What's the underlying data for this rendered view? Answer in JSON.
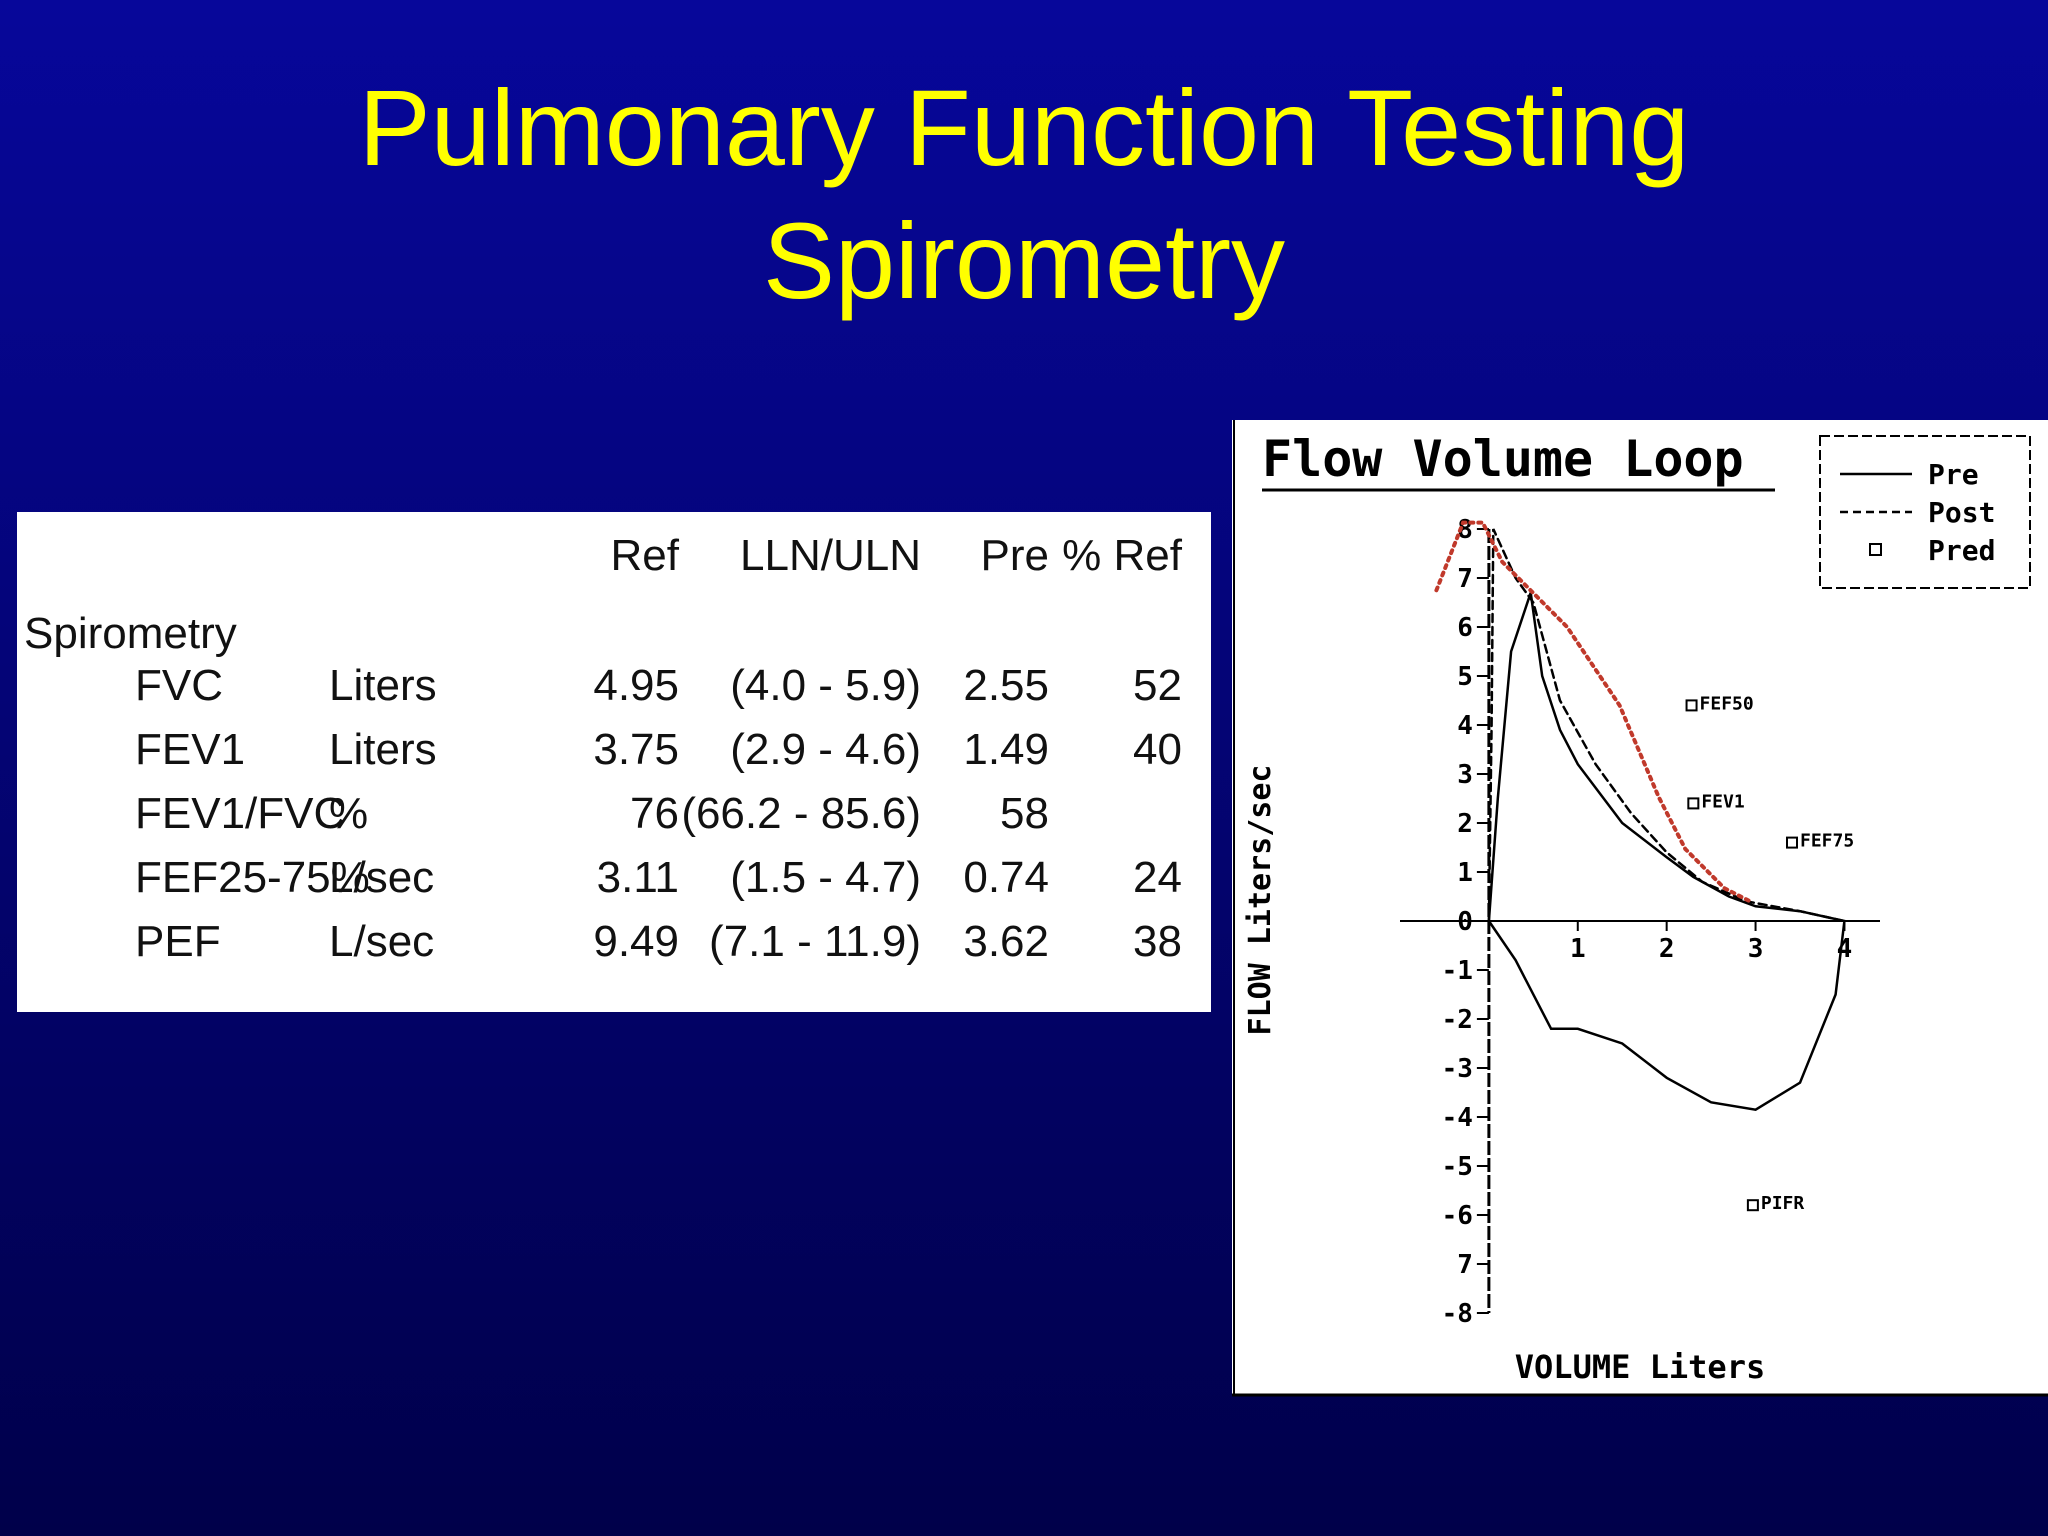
{
  "slide": {
    "title": [
      "Pulmonary Function Testing",
      "Spirometry"
    ]
  },
  "table": {
    "columns": [
      "Ref",
      "LLN/ULN",
      "Pre",
      "% Ref"
    ],
    "section": "Spirometry",
    "rows": [
      [
        "FVC",
        "Liters",
        "4.95",
        "(4.0 - 5.9)",
        "2.55",
        "52"
      ],
      [
        "FEV1",
        "Liters",
        "3.75",
        "(2.9 - 4.6)",
        "1.49",
        "40"
      ],
      [
        "FEV1/FVC",
        "%",
        "76",
        "(66.2 - 85.6)",
        "58",
        null
      ],
      [
        "FEF25-75%",
        "L/sec",
        "3.11",
        "(1.5 - 4.7)",
        "0.74",
        "24"
      ],
      [
        "PEF",
        "L/sec",
        "9.49",
        "(7.1 - 11.9)",
        "3.62",
        "38"
      ]
    ]
  },
  "chart_data": {
    "type": "line",
    "title": "Flow Volume Loop",
    "x_label": "VOLUME  Liters",
    "y_label": "FLOW  Liters/sec",
    "xlim": [
      -1,
      4.4
    ],
    "ylim": [
      -8,
      8
    ],
    "xticks": [
      1,
      2,
      3,
      4
    ],
    "yticks": [
      8,
      7,
      6,
      5,
      4,
      3,
      2,
      1,
      0,
      -1,
      -2,
      -3,
      -4,
      -5,
      -6,
      {
        "value": -7,
        "label": "7"
      },
      -8
    ],
    "legend": "top-right",
    "series": [
      {
        "name": "Pre",
        "color": "#000000",
        "style": "solid",
        "x": [
          0,
          0.1,
          0.25,
          0.47,
          0.6,
          0.8,
          1.0,
          1.5,
          2.0,
          2.3,
          2.7,
          3.0,
          3.5,
          4.0,
          3.9,
          3.5,
          3.0,
          2.5,
          2.0,
          1.5,
          1.0,
          0.7,
          0.3,
          0
        ],
        "values": [
          0,
          2.5,
          5.5,
          6.7,
          5.0,
          3.9,
          3.2,
          2.0,
          1.3,
          0.9,
          0.5,
          0.3,
          0.2,
          0,
          -1.5,
          -3.3,
          -3.85,
          -3.7,
          -3.2,
          -2.5,
          -2.2,
          -2.2,
          -0.8,
          0
        ]
      },
      {
        "name": "Post",
        "color": "#000000",
        "style": "dashed",
        "x": [
          0,
          0.03,
          0.05,
          0.3,
          0.5,
          0.8,
          1.2,
          1.6,
          2.0,
          2.4,
          2.9,
          3.5,
          4.0
        ],
        "values": [
          0,
          4.0,
          8,
          7.0,
          6.5,
          4.5,
          3.2,
          2.2,
          1.4,
          0.8,
          0.4,
          0.2,
          0
        ]
      },
      {
        "name": "Pred",
        "color": "#000000",
        "style": "marker",
        "x": [
          2.28,
          2.3,
          3.41,
          2.97
        ],
        "values": [
          4.4,
          2.4,
          1.6,
          -5.8
        ]
      },
      {
        "color": "#c0392b",
        "style": "dotted",
        "x": [
          -0.59,
          -0.29,
          -0.07,
          0.15,
          0.88,
          1.47,
          1.91,
          2.21,
          2.65,
          2.94
        ],
        "values": [
          6.75,
          8.13,
          8.13,
          7.33,
          6.0,
          4.4,
          2.53,
          1.47,
          0.67,
          0.4
        ]
      }
    ],
    "annotations": [
      {
        "text": "FEF50",
        "x": 2.28,
        "y": 4.4
      },
      {
        "text": "FEV1",
        "x": 2.3,
        "y": 2.4
      },
      {
        "text": "FEF75",
        "x": 3.41,
        "y": 1.6
      },
      {
        "text": "PIFR",
        "x": 2.97,
        "y": -5.8
      }
    ]
  }
}
